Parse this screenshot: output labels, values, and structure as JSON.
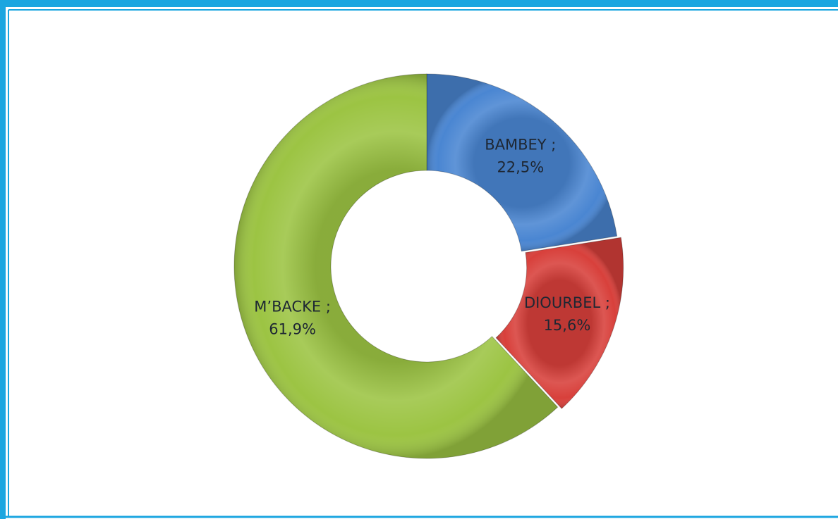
{
  "chart_data": {
    "type": "donut",
    "categories": [
      "BAMBEY ;",
      "DIOURBEL ;",
      "M’BACKE ;"
    ],
    "values": [
      22.5,
      15.6,
      61.9
    ],
    "value_labels": [
      "22,5%",
      "15,6%",
      "61,9%"
    ],
    "colors": [
      "#4a86d2",
      "#d8403b",
      "#9cc443"
    ]
  }
}
